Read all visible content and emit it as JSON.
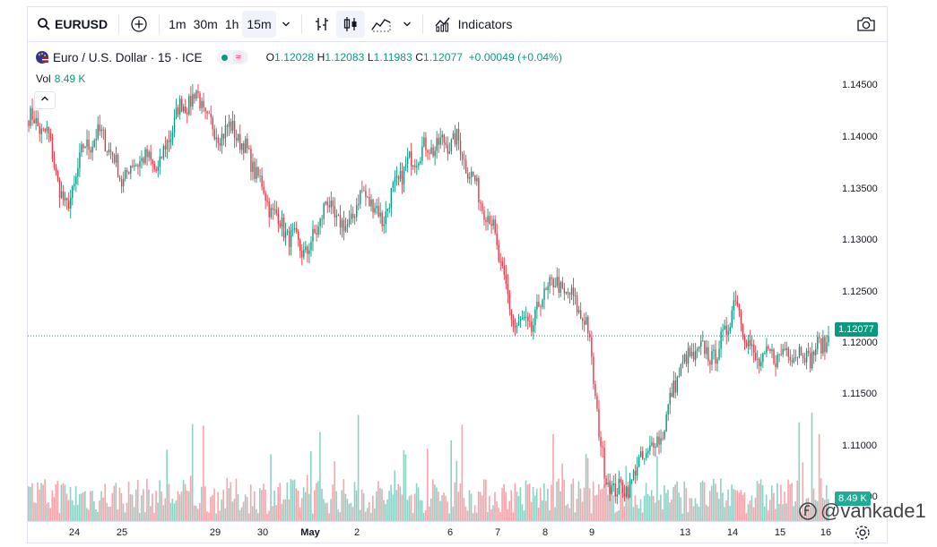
{
  "toolbar": {
    "symbol": "EURUSD",
    "intervals": [
      "1m",
      "30m",
      "1h",
      "15m"
    ],
    "active_interval": "15m",
    "indicators_label": "Indicators"
  },
  "legend": {
    "title": "Euro / U.S. Dollar · 15 · ICE",
    "o_key": "O",
    "o": "1.12028",
    "h_key": "H",
    "h": "1.12083",
    "l_key": "L",
    "l": "1.11983",
    "c_key": "C",
    "c": "1.12077",
    "change": "+0.00049 (+0.04%)",
    "vol_label": "Vol",
    "vol_value": "8.49 K"
  },
  "price_axis": {
    "ticks": [
      "1.14500",
      "1.14000",
      "1.13500",
      "1.13000",
      "1.12500",
      "1.12000",
      "1.11500",
      "1.11000",
      "1.10500"
    ],
    "last_price": "1.12077",
    "volume_badge": "8.49 K"
  },
  "time_axis": {
    "labels": [
      "24",
      "25",
      "29",
      "30",
      "May",
      "2",
      "6",
      "7",
      "8",
      "9",
      "13",
      "14",
      "15",
      "16"
    ]
  },
  "watermark": "@vankade1",
  "colors": {
    "up": "#089981",
    "down": "#f23645",
    "accent": "#2962ff"
  },
  "chart_data": {
    "type": "candlestick",
    "symbol": "EURUSD",
    "interval": "15",
    "x": [
      "24",
      "25",
      "29",
      "30",
      "May",
      "2",
      "6",
      "7",
      "8",
      "9",
      "13",
      "14",
      "15",
      "16"
    ],
    "close_path": [
      1.14,
      1.1385,
      1.1315,
      1.1375,
      1.1385,
      1.1345,
      1.1365,
      1.1355,
      1.1405,
      1.142,
      1.1385,
      1.139,
      1.136,
      1.132,
      1.1295,
      1.128,
      1.1325,
      1.13,
      1.1335,
      1.131,
      1.135,
      1.137,
      1.1375,
      1.138,
      1.134,
      1.13,
      1.122,
      1.1215,
      1.1255,
      1.1245,
      1.122,
      1.108,
      1.107,
      1.11,
      1.112,
      1.118,
      1.1195,
      1.119,
      1.124,
      1.1185,
      1.119,
      1.1195,
      1.119,
      1.1205
    ],
    "ylim": [
      1.1045,
      1.1465
    ],
    "last_close": 1.12077
  }
}
